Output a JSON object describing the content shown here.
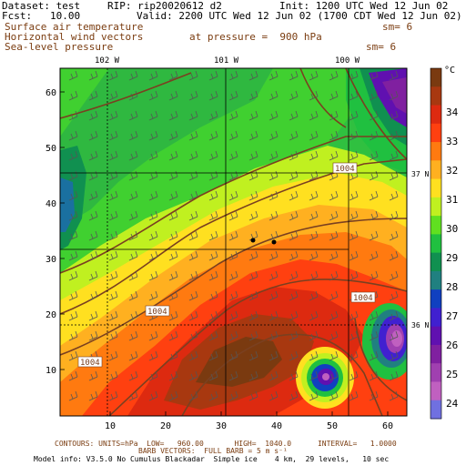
{
  "header": {
    "dataset": "Dataset: test",
    "rip": "RIP: rip20020612 d2",
    "init": "Init: 1200 UTC Wed 12 Jun 02",
    "fcst": "Fcst:   10.00",
    "valid": "Valid: 2200 UTC Wed 12 Jun 02 (1700 CDT Wed 12 Jun 02)"
  },
  "fields": {
    "line1": "Surface air temperature",
    "line1_sm": "sm= 6",
    "line2": "Horizontal wind vectors",
    "line2_pressure": "at pressure =  900 hPa",
    "line3": "Sea-level pressure",
    "line3_sm": "sm= 6"
  },
  "map": {
    "top_longitudes": [
      "102 W",
      "101 W",
      "100 W"
    ],
    "right_latitudes": [
      "37 N",
      "36 N"
    ],
    "y_ticks": [
      "60",
      "50",
      "40",
      "30",
      "20",
      "10"
    ],
    "x_ticks": [
      "10",
      "20",
      "30",
      "40",
      "50",
      "60"
    ],
    "isobar_labels": [
      "1004",
      "1004",
      "1004",
      "1004"
    ]
  },
  "colorbar": {
    "unit": "°C",
    "labels": [
      "34",
      "33",
      "32",
      "31",
      "30",
      "29",
      "28",
      "27",
      "26",
      "25",
      "24"
    ],
    "colors": [
      "#7a3a10",
      "#a83810",
      "#dd2a10",
      "#ff4010",
      "#ff7a10",
      "#ffb020",
      "#ffe020",
      "#c0f020",
      "#60e020",
      "#20c040",
      "#109050",
      "#208080",
      "#1040c0",
      "#4020d0",
      "#6010b0",
      "#8020a0",
      "#a040b0",
      "#c060c0",
      "#7070e0"
    ]
  },
  "footer": {
    "contours": "CONTOURS: UNITS=hPa  LOW=   960.00       HIGH=  1040.0      INTERVAL=   1.0000",
    "barbs": "BARB VECTORS:  FULL BARB = 5 m s⁻¹",
    "model": "Model info: V3.5.0 No Cumulus Blackadar  Simple ice    4 km,  29 levels,   10 sec"
  }
}
